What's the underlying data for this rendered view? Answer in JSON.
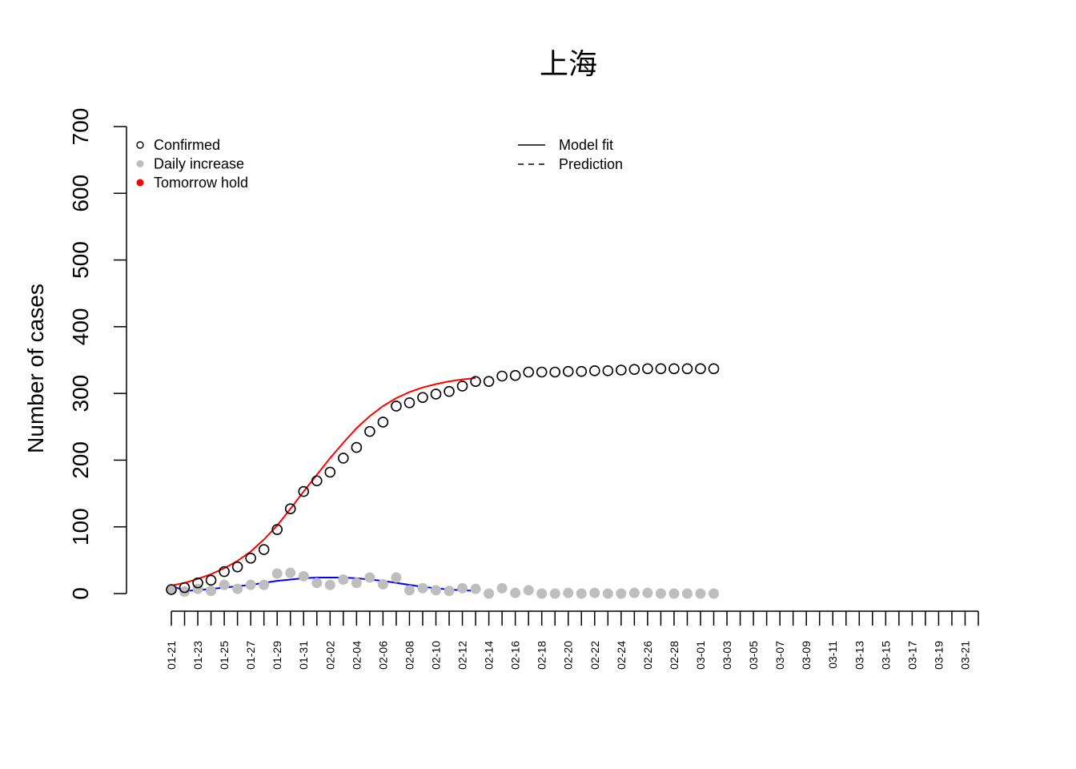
{
  "chart_data": {
    "type": "scatter",
    "title": "上海",
    "y_label": "Number of cases",
    "ylim": [
      0,
      700
    ],
    "yticks": [
      0,
      100,
      200,
      300,
      400,
      500,
      600,
      700
    ],
    "categories": [
      "01-21",
      null,
      "01-23",
      null,
      "01-25",
      null,
      "01-27",
      null,
      "01-29",
      null,
      "01-31",
      null,
      "02-02",
      null,
      "02-04",
      null,
      "02-06",
      null,
      "02-08",
      null,
      "02-10",
      null,
      "02-12",
      null,
      "02-14",
      null,
      "02-16",
      null,
      "02-18",
      null,
      "02-20",
      null,
      "02-22",
      null,
      "02-24",
      null,
      "02-26",
      null,
      "02-28",
      null,
      "03-01",
      null,
      "03-03",
      null,
      "03-05",
      null,
      "03-07",
      null,
      "03-09",
      null,
      "03-11",
      null,
      "03-13",
      null,
      "03-15",
      null,
      "03-17",
      null,
      "03-19",
      null,
      "03-21",
      null
    ],
    "series": [
      {
        "name": "Confirmed",
        "color": "#000000",
        "marker": "open",
        "values": [
          6,
          9,
          16,
          20,
          33,
          40,
          53,
          66,
          96,
          127,
          153,
          169,
          182,
          203,
          219,
          243,
          257,
          281,
          286,
          294,
          299,
          303,
          311,
          318,
          318,
          326,
          327,
          332,
          332,
          332,
          333,
          333,
          334,
          334,
          335,
          336,
          337,
          337,
          337,
          337,
          337,
          337,
          null,
          null,
          null,
          null,
          null,
          null,
          null,
          null,
          null,
          null,
          null,
          null,
          null,
          null,
          null,
          null,
          null,
          null,
          null,
          null
        ]
      },
      {
        "name": "Daily increase",
        "color": "#bebebe",
        "marker": "filled",
        "values": [
          6,
          3,
          7,
          4,
          13,
          7,
          13,
          13,
          30,
          31,
          26,
          16,
          13,
          21,
          16,
          24,
          14,
          24,
          5,
          8,
          5,
          4,
          8,
          7,
          0,
          8,
          1,
          5,
          0,
          0,
          1,
          0,
          1,
          0,
          0,
          1,
          1,
          0,
          0,
          0,
          0,
          0,
          null,
          null,
          null,
          null,
          null,
          null,
          null,
          null,
          null,
          null,
          null,
          null,
          null,
          null,
          null,
          null,
          null,
          null,
          null,
          null
        ]
      },
      {
        "name": "Tomorrow hold",
        "color": "#ff0000",
        "marker": "filled",
        "values": [
          null,
          null,
          null,
          null,
          null,
          null,
          null,
          null,
          null,
          null,
          null,
          null,
          null,
          null,
          null,
          null,
          null,
          null,
          null,
          null,
          null,
          null,
          null,
          null,
          null,
          null,
          null,
          null,
          null,
          null,
          null,
          null,
          null,
          null,
          null,
          null,
          null,
          null,
          null,
          null,
          null,
          null,
          null,
          null,
          null,
          null,
          null,
          null,
          null,
          null,
          null,
          null,
          null,
          null,
          null,
          null,
          null,
          null,
          null,
          null,
          null,
          null
        ]
      }
    ],
    "fit_lines": [
      {
        "color": "#ff0000",
        "values": [
          12,
          16,
          22,
          29,
          38,
          49,
          63,
          81,
          102,
          127,
          153,
          178,
          203,
          226,
          248,
          266,
          281,
          293,
          302,
          309,
          314,
          318,
          321,
          323,
          null,
          null,
          null,
          null,
          null,
          null,
          null,
          null,
          null,
          null,
          null,
          null,
          null,
          null,
          null,
          null,
          null,
          null,
          null,
          null,
          null,
          null,
          null,
          null,
          null,
          null,
          null,
          null,
          null,
          null,
          null,
          null,
          null,
          null,
          null,
          null,
          null,
          null
        ]
      },
      {
        "color": "#0000ff",
        "values": [
          12,
          4,
          5,
          7,
          9,
          11,
          13,
          16,
          19,
          21,
          23,
          24,
          24,
          24,
          23,
          21,
          19,
          16,
          13,
          10,
          8,
          6,
          5,
          4,
          null,
          null,
          null,
          null,
          null,
          null,
          null,
          null,
          null,
          null,
          null,
          null,
          null,
          null,
          null,
          null,
          null,
          null,
          null,
          null,
          null,
          null,
          null,
          null,
          null,
          null,
          null,
          null,
          null,
          null,
          null,
          null,
          null,
          null,
          null,
          null,
          null,
          null
        ]
      }
    ],
    "line_legend": [
      {
        "name": "Model fit",
        "style": "solid"
      },
      {
        "name": "Prediction",
        "style": "dashed"
      }
    ]
  }
}
